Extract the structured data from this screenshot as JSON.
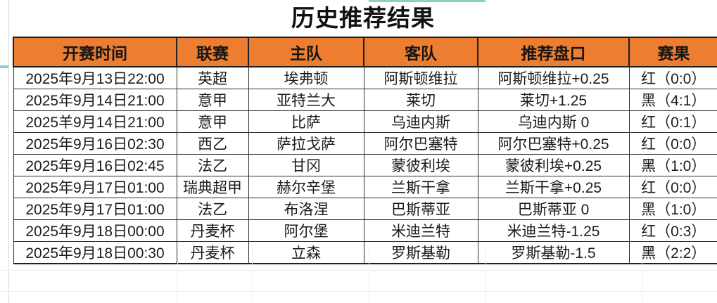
{
  "title": "历史推荐结果",
  "accent_colors": {
    "header_bg": "#ED7D31",
    "red_result": "#B22A20",
    "teal_marker": "#8FCFC0"
  },
  "table": {
    "headers": {
      "time": "开赛时间",
      "league": "联赛",
      "home": "主队",
      "away": "客队",
      "handicap": "推荐盘口",
      "result": "赛果"
    },
    "rows": [
      {
        "time": "2025年9月13日22:00",
        "league": "英超",
        "home": "埃弗顿",
        "away": "阿斯顿维拉",
        "handicap": "阿斯顿维拉+0.25",
        "result": "红（0:0）",
        "result_color": "red"
      },
      {
        "time": "2025年9月14日21:00",
        "league": "意甲",
        "home": "亚特兰大",
        "away": "莱切",
        "handicap": "莱切+1.25",
        "result": "黑（4:1）",
        "result_color": "black"
      },
      {
        "time": "2025羊9月14日21:00",
        "league": "意甲",
        "home": "比萨",
        "away": "乌迪内斯",
        "handicap": "乌迪内斯 0",
        "result": "红（0:1）",
        "result_color": "red"
      },
      {
        "time": "2025年9月16日02:30",
        "league": "西乙",
        "home": "萨拉戈萨",
        "away": "阿尔巴塞特",
        "handicap": "阿尔巴塞特+0.25",
        "result": "红（0:0）",
        "result_color": "red"
      },
      {
        "time": "2025年9月16日02:45",
        "league": "法乙",
        "home": "甘冈",
        "away": "蒙彼利埃",
        "handicap": "蒙彼利埃+0.25",
        "result": "黑（1:0）",
        "result_color": "black"
      },
      {
        "time": "2025年9月17日01:00",
        "league": "瑞典超甲",
        "home": "赫尔辛堡",
        "away": "兰斯干拿",
        "handicap": "兰斯干拿+0.25",
        "result": "红（0:0）",
        "result_color": "red"
      },
      {
        "time": "2025年9月17日01:00",
        "league": "法乙",
        "home": "布洛涅",
        "away": "巴斯蒂亚",
        "handicap": "巴斯蒂亚 0",
        "result": "黑（1:0）",
        "result_color": "black"
      },
      {
        "time": "2025年9月18日00:00",
        "league": "丹麦杯",
        "home": "阿尔堡",
        "away": "米迪兰特",
        "handicap": "米迪兰特-1.25",
        "result": "红（0:3）",
        "result_color": "red"
      },
      {
        "time": "2025年9月18日00:30",
        "league": "丹麦杯",
        "home": "立森",
        "away": "罗斯基勒",
        "handicap": "罗斯基勒-1.5",
        "result": "黑（2:2）",
        "result_color": "black"
      }
    ]
  }
}
